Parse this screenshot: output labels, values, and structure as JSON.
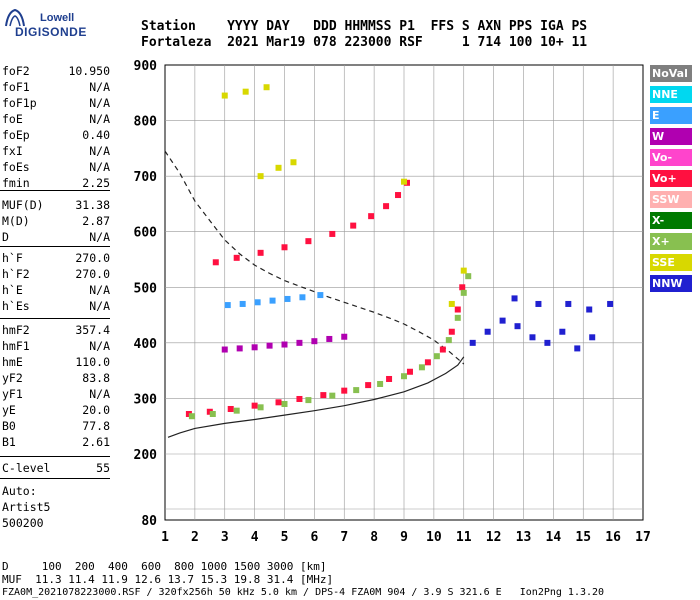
{
  "logo": {
    "top_text": "Lowell",
    "main_text": "DIGISONDE"
  },
  "header": {
    "line1": "Station    YYYY DAY   DDD HHMMSS P1  FFS S AXN PPS IGA PS",
    "line2": "Fortaleza  2021 Mar19 078 223000 RSF     1 714 100 10+ 11"
  },
  "parameters": [
    {
      "name": "foF2",
      "value": "10.950"
    },
    {
      "name": "foF1",
      "value": "N/A"
    },
    {
      "name": "foF1p",
      "value": "N/A"
    },
    {
      "name": "foE",
      "value": "N/A"
    },
    {
      "name": "foEp",
      "value": "0.40"
    },
    {
      "name": "fxI",
      "value": "N/A"
    },
    {
      "name": "foEs",
      "value": "N/A"
    },
    {
      "name": "fmin",
      "value": "2.25"
    },
    {
      "name": "MUF(D)",
      "value": "31.38"
    },
    {
      "name": "M(D)",
      "value": "2.87"
    },
    {
      "name": "D",
      "value": "N/A"
    },
    {
      "name": "h`F",
      "value": "270.0"
    },
    {
      "name": "h`F2",
      "value": "270.0"
    },
    {
      "name": "h`E",
      "value": "N/A"
    },
    {
      "name": "h`Es",
      "value": "N/A"
    },
    {
      "name": "hmF2",
      "value": "357.4"
    },
    {
      "name": "hmF1",
      "value": "N/A"
    },
    {
      "name": "hmE",
      "value": "110.0"
    },
    {
      "name": "yF2",
      "value": "83.8"
    },
    {
      "name": "yF1",
      "value": "N/A"
    },
    {
      "name": "yE",
      "value": "20.0"
    },
    {
      "name": "B0",
      "value": "77.8"
    },
    {
      "name": "B1",
      "value": "2.61"
    },
    {
      "name": "C-level",
      "value": "55"
    }
  ],
  "autoscaling": {
    "label": "Auto:",
    "software": "Artist5",
    "version": "500200"
  },
  "legend": [
    {
      "label": "NoVal",
      "color": "#7f7f7f"
    },
    {
      "label": "NNE",
      "color": "#00d8f0"
    },
    {
      "label": "E",
      "color": "#3aa0ff"
    },
    {
      "label": "W",
      "color": "#b000b0"
    },
    {
      "label": "Vo-",
      "color": "#ff44cc"
    },
    {
      "label": "Vo+",
      "color": "#ff1040"
    },
    {
      "label": "SSW",
      "color": "#ffb0b0"
    },
    {
      "label": "X-",
      "color": "#007a00"
    },
    {
      "label": "X+",
      "color": "#88c050"
    },
    {
      "label": "SSE",
      "color": "#d8d800"
    },
    {
      "label": "NNW",
      "color": "#2020d0"
    }
  ],
  "footer": {
    "distance_line": "D     100  200  400  600  800 1000 1500 3000 [km]",
    "muf_line": "MUF  11.3 11.4 11.9 12.6 13.7 15.3 19.8 31.4 [MHz]",
    "file_line": "FZA0M_2021078223000.RSF / 320fx256h 50 kHz 5.0 km / DPS-4 FZA0M 904 / 3.9 S 321.6 E   Ion2Png 1.3.20"
  },
  "chart_data": {
    "type": "scatter",
    "xlabel": "",
    "ylabel": "",
    "xlim": [
      1,
      17
    ],
    "ylim": [
      80,
      900
    ],
    "xticks": [
      1,
      2,
      3,
      4,
      5,
      6,
      7,
      8,
      9,
      10,
      11,
      12,
      13,
      14,
      15,
      16,
      17
    ],
    "yticks": [
      80,
      100,
      200,
      300,
      400,
      500,
      600,
      700,
      800,
      900
    ],
    "grid": true,
    "legend_position": "right",
    "series": [
      {
        "name": "Vo+",
        "color": "#ff1040",
        "points": [
          [
            1.8,
            272
          ],
          [
            2.5,
            276
          ],
          [
            3.2,
            281
          ],
          [
            4,
            287
          ],
          [
            4.8,
            293
          ],
          [
            5.5,
            299
          ],
          [
            6.3,
            306
          ],
          [
            7,
            314
          ],
          [
            7.8,
            324
          ],
          [
            8.5,
            335
          ],
          [
            9.2,
            348
          ],
          [
            9.8,
            365
          ],
          [
            10.3,
            388
          ],
          [
            10.6,
            420
          ],
          [
            10.8,
            460
          ],
          [
            10.95,
            500
          ]
        ]
      },
      {
        "name": "X+",
        "color": "#88c050",
        "points": [
          [
            1.9,
            268
          ],
          [
            2.6,
            272
          ],
          [
            3.4,
            278
          ],
          [
            4.2,
            284
          ],
          [
            5,
            290
          ],
          [
            5.8,
            297
          ],
          [
            6.6,
            305
          ],
          [
            7.4,
            315
          ],
          [
            8.2,
            326
          ],
          [
            9,
            340
          ],
          [
            9.6,
            356
          ],
          [
            10.1,
            376
          ],
          [
            10.5,
            405
          ],
          [
            10.8,
            445
          ],
          [
            11,
            490
          ],
          [
            11.15,
            520
          ]
        ]
      },
      {
        "name": "Vo+ (2nd hop)",
        "color": "#ff1040",
        "points": [
          [
            2.7,
            545
          ],
          [
            3.4,
            553
          ],
          [
            4.2,
            562
          ],
          [
            5,
            572
          ],
          [
            5.8,
            583
          ],
          [
            6.6,
            596
          ],
          [
            7.3,
            611
          ],
          [
            7.9,
            628
          ],
          [
            8.4,
            646
          ],
          [
            8.8,
            666
          ],
          [
            9.1,
            688
          ]
        ]
      },
      {
        "name": "E",
        "color": "#3aa0ff",
        "points": [
          [
            3.1,
            468
          ],
          [
            3.6,
            470
          ],
          [
            4.1,
            473
          ],
          [
            4.6,
            476
          ],
          [
            5.1,
            479
          ],
          [
            5.6,
            482
          ],
          [
            6.2,
            486
          ]
        ]
      },
      {
        "name": "W",
        "color": "#b000b0",
        "points": [
          [
            3.0,
            388
          ],
          [
            3.5,
            390
          ],
          [
            4.0,
            392
          ],
          [
            4.5,
            395
          ],
          [
            5.0,
            397
          ],
          [
            5.5,
            400
          ],
          [
            6,
            403
          ],
          [
            6.5,
            407
          ],
          [
            7,
            411
          ]
        ]
      },
      {
        "name": "NNW",
        "color": "#2020d0",
        "points": [
          [
            11.3,
            400
          ],
          [
            11.8,
            420
          ],
          [
            12.3,
            440
          ],
          [
            12.8,
            430
          ],
          [
            13.3,
            410
          ],
          [
            13.8,
            400
          ],
          [
            14.3,
            420
          ],
          [
            14.8,
            390
          ],
          [
            15.3,
            410
          ],
          [
            12.7,
            480
          ],
          [
            13.5,
            470
          ],
          [
            14.5,
            470
          ],
          [
            15.2,
            460
          ],
          [
            15.9,
            470
          ]
        ]
      },
      {
        "name": "SSE",
        "color": "#d8d800",
        "points": [
          [
            3.0,
            845
          ],
          [
            3.7,
            852
          ],
          [
            4.4,
            860
          ],
          [
            4.2,
            700
          ],
          [
            4.8,
            715
          ],
          [
            5.3,
            725
          ],
          [
            9.0,
            690
          ],
          [
            10.6,
            470
          ],
          [
            11.0,
            530
          ]
        ]
      }
    ],
    "model_curves": [
      {
        "name": "true-height profile",
        "style": "solid",
        "points": [
          [
            1.1,
            230
          ],
          [
            1.5,
            238
          ],
          [
            2,
            246
          ],
          [
            3,
            255
          ],
          [
            4,
            262
          ],
          [
            5,
            270
          ],
          [
            6,
            278
          ],
          [
            7,
            287
          ],
          [
            8,
            298
          ],
          [
            9,
            312
          ],
          [
            9.8,
            328
          ],
          [
            10.4,
            345
          ],
          [
            10.8,
            360
          ],
          [
            11,
            375
          ]
        ]
      },
      {
        "name": "MUF transmission curve",
        "style": "dashed",
        "points": [
          [
            1,
            745
          ],
          [
            1.5,
            705
          ],
          [
            2,
            655
          ],
          [
            2.5,
            620
          ],
          [
            3,
            585
          ],
          [
            3.5,
            560
          ],
          [
            4,
            540
          ],
          [
            4.5,
            525
          ],
          [
            5,
            512
          ],
          [
            5.5,
            502
          ],
          [
            6,
            492
          ],
          [
            6.5,
            482
          ],
          [
            7,
            473
          ],
          [
            7.5,
            464
          ],
          [
            8,
            455
          ],
          [
            8.5,
            445
          ],
          [
            9,
            434
          ],
          [
            9.5,
            420
          ],
          [
            10,
            405
          ],
          [
            10.5,
            385
          ],
          [
            11,
            362
          ]
        ]
      }
    ]
  }
}
